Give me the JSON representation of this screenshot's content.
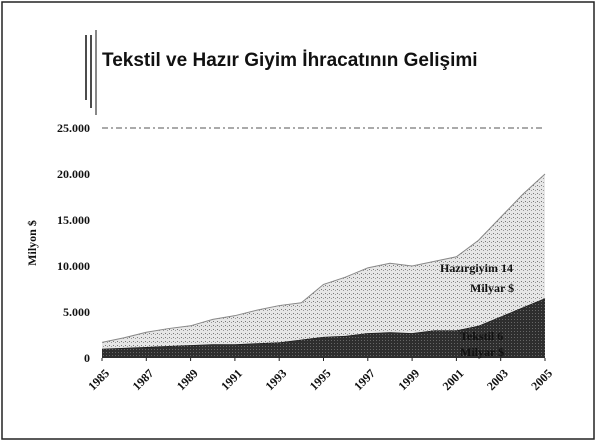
{
  "chart_data": {
    "type": "stacked_area",
    "title": "Tekstil ve Hazır Giyim İhracatının Gelişimi",
    "y_label": "Milyon $",
    "x": [
      1985,
      1986,
      1987,
      1988,
      1989,
      1990,
      1991,
      1992,
      1993,
      1994,
      1995,
      1996,
      1997,
      1998,
      1999,
      2000,
      2001,
      2002,
      2003,
      2004,
      2005
    ],
    "series": [
      {
        "name": "Tekstil",
        "color": "#2e2e2e",
        "values": [
          1000,
          1100,
          1200,
          1300,
          1400,
          1500,
          1500,
          1600,
          1700,
          2000,
          2300,
          2400,
          2700,
          2800,
          2700,
          3000,
          3000,
          3500,
          4500,
          5500,
          6500
        ]
      },
      {
        "name": "Hazırgiyim",
        "color": "#d9d9d9",
        "values": [
          700,
          1100,
          1600,
          1900,
          2100,
          2700,
          3100,
          3600,
          4000,
          4000,
          5700,
          6400,
          7100,
          7500,
          7300,
          7500,
          8000,
          9300,
          10800,
          12300,
          13500
        ]
      }
    ],
    "annotations": [
      "Hazırgiyim 14",
      "Milyar $",
      "Tekstil 6",
      "Milyar $"
    ],
    "xlim": [
      1985,
      2005
    ],
    "xticks": [
      1985,
      1987,
      1989,
      1991,
      1993,
      1995,
      1997,
      1999,
      2001,
      2003,
      2005
    ],
    "ylim": [
      0,
      25000
    ],
    "yticks": [
      0,
      {
        "value": 5000,
        "label": "5.000"
      },
      {
        "value": 10000,
        "label": "10.000"
      },
      {
        "value": 15000,
        "label": "15.000"
      },
      {
        "value": 20000,
        "label": "20.000"
      },
      {
        "value": 25000,
        "label": "25.000"
      }
    ]
  }
}
